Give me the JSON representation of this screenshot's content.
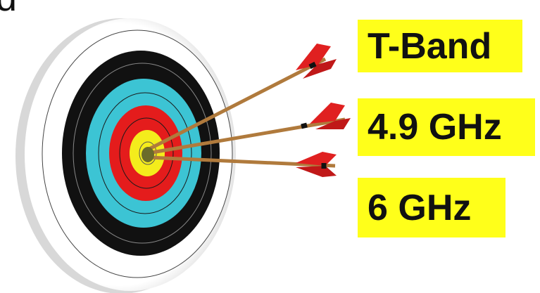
{
  "corner_text": "d",
  "labels": [
    "T-Band",
    "4.9 GHz",
    "6 GHz"
  ]
}
